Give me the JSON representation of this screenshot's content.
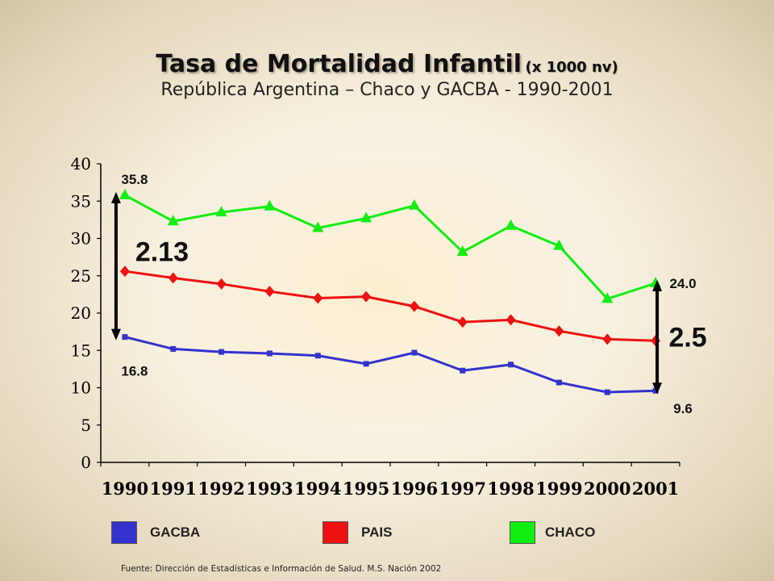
{
  "chart_data": {
    "type": "line",
    "title": "Tasa de Mortalidad Infantil",
    "title_unit": "(x 1000 nv)",
    "subtitle": "República Argentina – Chaco y GACBA - 1990-2001",
    "categories": [
      "1990",
      "1991",
      "1992",
      "1993",
      "1994",
      "1995",
      "1996",
      "1997",
      "1998",
      "1999",
      "2000",
      "2001"
    ],
    "ylim": [
      0,
      40
    ],
    "yticks": [
      0,
      5,
      10,
      15,
      20,
      25,
      30,
      35,
      40
    ],
    "grid": false,
    "series": [
      {
        "name": "GACBA",
        "color": "#3333cc",
        "marker": "square",
        "values": [
          16.8,
          15.2,
          14.8,
          14.6,
          14.3,
          13.2,
          14.7,
          12.3,
          13.1,
          10.7,
          9.4,
          9.6
        ]
      },
      {
        "name": "PAIS",
        "color": "#ee1111",
        "marker": "diamond",
        "values": [
          25.6,
          24.7,
          23.9,
          22.9,
          22.0,
          22.2,
          20.9,
          18.8,
          19.1,
          17.6,
          16.5,
          16.3
        ]
      },
      {
        "name": "CHACO",
        "color": "#11ee11",
        "marker": "triangle",
        "values": [
          35.8,
          32.3,
          33.5,
          34.3,
          31.4,
          32.7,
          34.4,
          28.2,
          31.7,
          29.0,
          21.9,
          24.0
        ]
      }
    ],
    "annotations": [
      {
        "text": "35.8",
        "category": "1990",
        "value": 35.8
      },
      {
        "text": "16.8",
        "category": "1990",
        "value": 16.8
      },
      {
        "text": "2.13",
        "category": "1990",
        "span": [
          16.8,
          35.8
        ]
      },
      {
        "text": "24.0",
        "category": "2001",
        "value": 24.0
      },
      {
        "text": "9.6",
        "category": "2001",
        "value": 9.6
      },
      {
        "text": "2.5",
        "category": "2001",
        "span": [
          9.6,
          24.0
        ]
      }
    ],
    "legend": "bottom"
  },
  "source": "Fuente: Dirección de Estadísticas e Información de Salud. M.S. Nación 2002"
}
